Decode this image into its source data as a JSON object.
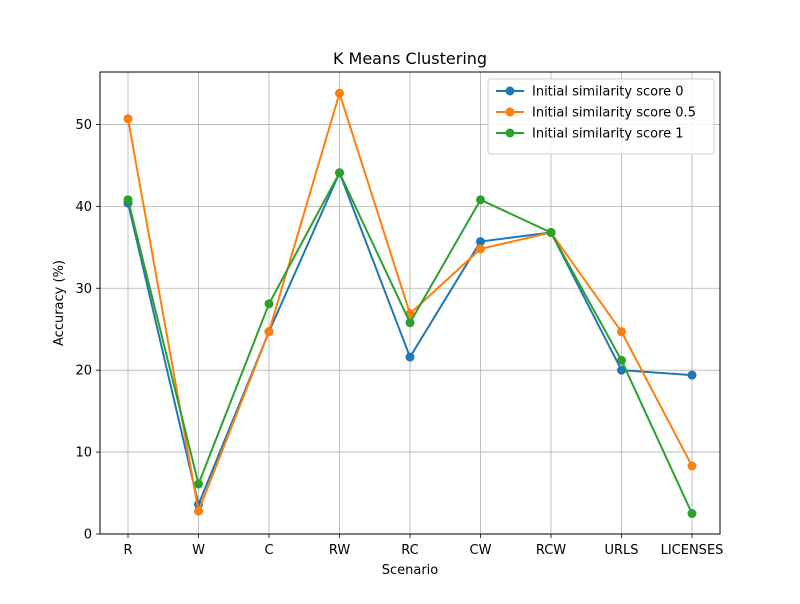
{
  "chart_data": {
    "type": "line",
    "title": "K Means Clustering",
    "xlabel": "Scenario",
    "ylabel": "Accuracy (%)",
    "categories": [
      "R",
      "W",
      "C",
      "RW",
      "RC",
      "CW",
      "RCW",
      "URLS",
      "LICENSES"
    ],
    "ylim": [
      0,
      56.4
    ],
    "yticks": [
      0,
      10,
      20,
      30,
      40,
      50
    ],
    "grid": true,
    "legend_position": "top-right",
    "series": [
      {
        "name": "Initial similarity score 0",
        "color": "#1f77b4",
        "values": [
          40.4,
          3.6,
          24.7,
          44.1,
          21.6,
          35.7,
          36.8,
          20.0,
          19.4
        ]
      },
      {
        "name": "Initial similarity score 0.5",
        "color": "#ff7f0e",
        "values": [
          50.7,
          2.8,
          24.7,
          53.8,
          26.9,
          34.8,
          36.8,
          24.7,
          8.3
        ]
      },
      {
        "name": "Initial similarity score 1",
        "color": "#2ca02c",
        "values": [
          40.8,
          6.1,
          28.1,
          44.1,
          25.8,
          40.8,
          36.8,
          21.2,
          2.5
        ]
      }
    ]
  }
}
